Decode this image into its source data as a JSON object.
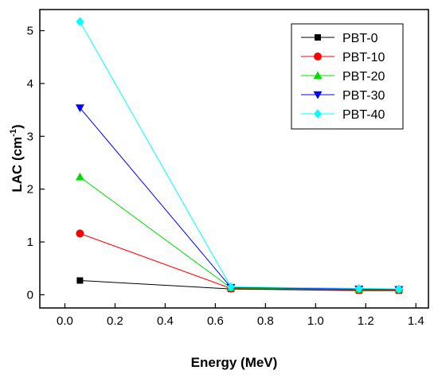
{
  "chart_data": {
    "type": "line",
    "title": "",
    "xlabel": "Energy (MeV)",
    "ylabel_main": "LAC (cm",
    "ylabel_sup": "-1",
    "ylabel_close": ")",
    "xlim": [
      -0.1,
      1.45
    ],
    "ylim": [
      -0.25,
      5.4
    ],
    "xticks": [
      0.0,
      0.2,
      0.4,
      0.6,
      0.8,
      1.0,
      1.2,
      1.4
    ],
    "xtick_labels": [
      "0.0",
      "0.2",
      "0.4",
      "0.6",
      "0.8",
      "1.0",
      "1.2",
      "1.4"
    ],
    "yticks": [
      0,
      1,
      2,
      3,
      4,
      5
    ],
    "ytick_labels": [
      "0",
      "1",
      "2",
      "3",
      "4",
      "5"
    ],
    "grid": false,
    "legend_position": "top-right",
    "x": [
      0.06,
      0.662,
      1.173,
      1.332
    ],
    "series": [
      {
        "name": "PBT-0",
        "color": "#000000",
        "marker": "square",
        "values": [
          0.27,
          0.11,
          0.08,
          0.08
        ]
      },
      {
        "name": "PBT-10",
        "color": "#ff0000",
        "marker": "circle",
        "values": [
          1.16,
          0.12,
          0.09,
          0.09
        ]
      },
      {
        "name": "PBT-20",
        "color": "#00dd00",
        "marker": "triangle-up",
        "values": [
          2.23,
          0.13,
          0.1,
          0.1
        ]
      },
      {
        "name": "PBT-30",
        "color": "#0000ff",
        "marker": "triangle-down",
        "values": [
          3.54,
          0.14,
          0.11,
          0.1
        ]
      },
      {
        "name": "PBT-40",
        "color": "#00ffff",
        "marker": "diamond",
        "values": [
          5.17,
          0.15,
          0.12,
          0.11
        ]
      }
    ]
  }
}
